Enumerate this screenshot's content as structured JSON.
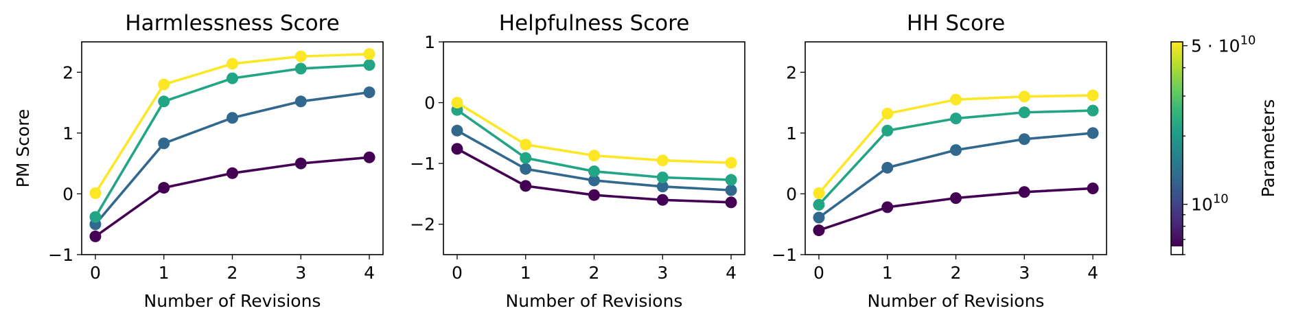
{
  "chart_data": [
    {
      "type": "line",
      "title": "Harmlessness Score",
      "xlabel": "Number of Revisions",
      "ylabel": "PM Score",
      "x": [
        0,
        1,
        2,
        3,
        4
      ],
      "xticks": [
        "0",
        "1",
        "2",
        "3",
        "4"
      ],
      "xlim": [
        -0.2,
        4.2
      ],
      "ylim": [
        -1,
        2.5
      ],
      "yticks": [
        "−1",
        "0",
        "1",
        "2"
      ],
      "series": [
        {
          "color": "#440154",
          "values": [
            -0.7,
            0.1,
            0.34,
            0.5,
            0.6
          ]
        },
        {
          "color": "#31688e",
          "values": [
            -0.5,
            0.83,
            1.25,
            1.52,
            1.67
          ]
        },
        {
          "color": "#21a585",
          "values": [
            -0.38,
            1.52,
            1.9,
            2.06,
            2.12
          ]
        },
        {
          "color": "#fde725",
          "values": [
            0.01,
            1.8,
            2.14,
            2.26,
            2.3
          ]
        }
      ]
    },
    {
      "type": "line",
      "title": "Helpfulness Score",
      "xlabel": "Number of Revisions",
      "ylabel": "",
      "x": [
        0,
        1,
        2,
        3,
        4
      ],
      "xticks": [
        "0",
        "1",
        "2",
        "3",
        "4"
      ],
      "xlim": [
        -0.2,
        4.2
      ],
      "ylim": [
        -2.5,
        1
      ],
      "yticks": [
        "−2",
        "−1",
        "0",
        "1"
      ],
      "series": [
        {
          "color": "#440154",
          "values": [
            -0.76,
            -1.37,
            -1.52,
            -1.6,
            -1.64
          ]
        },
        {
          "color": "#31688e",
          "values": [
            -0.46,
            -1.09,
            -1.28,
            -1.38,
            -1.44
          ]
        },
        {
          "color": "#21a585",
          "values": [
            -0.12,
            -0.91,
            -1.13,
            -1.23,
            -1.27
          ]
        },
        {
          "color": "#fde725",
          "values": [
            0.0,
            -0.69,
            -0.87,
            -0.95,
            -0.99
          ]
        }
      ]
    },
    {
      "type": "line",
      "title": "HH Score",
      "xlabel": "Number of Revisions",
      "ylabel": "",
      "x": [
        0,
        1,
        2,
        3,
        4
      ],
      "xticks": [
        "0",
        "1",
        "2",
        "3",
        "4"
      ],
      "xlim": [
        -0.2,
        4.2
      ],
      "ylim": [
        -1,
        2.5
      ],
      "yticks": [
        "−1",
        "0",
        "1",
        "2"
      ],
      "series": [
        {
          "color": "#440154",
          "values": [
            -0.6,
            -0.22,
            -0.07,
            0.03,
            0.09
          ]
        },
        {
          "color": "#31688e",
          "values": [
            -0.39,
            0.43,
            0.72,
            0.9,
            1.0
          ]
        },
        {
          "color": "#21a585",
          "values": [
            -0.18,
            1.04,
            1.24,
            1.34,
            1.37
          ]
        },
        {
          "color": "#fde725",
          "values": [
            0.01,
            1.32,
            1.55,
            1.6,
            1.62
          ]
        }
      ]
    }
  ],
  "colorbar": {
    "label": "Parameters",
    "scale": "log",
    "range": [
      6000000000,
      52000000000
    ],
    "tick_labels": [
      {
        "value": 10000000000,
        "base": "10",
        "exp": "10"
      },
      {
        "value": 50000000000,
        "base": "5 · 10",
        "exp": "10"
      }
    ],
    "colors": [
      "#440154",
      "#482878",
      "#3e4989",
      "#31688e",
      "#26828e",
      "#1f9e89",
      "#35b779",
      "#6ece58",
      "#b5de2b",
      "#fde725"
    ]
  }
}
